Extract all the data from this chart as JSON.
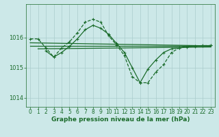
{
  "bg_color": "#cce8e8",
  "grid_color": "#aacccc",
  "line_color": "#1a6b2a",
  "xlabel": "Graphe pression niveau de la mer (hPa)",
  "xlabel_fontsize": 6.5,
  "tick_fontsize": 5.5,
  "xlim": [
    -0.5,
    23.5
  ],
  "ylim": [
    1013.7,
    1017.1
  ],
  "yticks": [
    1014,
    1015,
    1016
  ],
  "xticks": [
    0,
    1,
    2,
    3,
    4,
    5,
    6,
    7,
    8,
    9,
    10,
    11,
    12,
    13,
    14,
    15,
    16,
    17,
    18,
    19,
    20,
    21,
    22,
    23
  ],
  "series_main": {
    "x": [
      0,
      1,
      2,
      3,
      4,
      5,
      6,
      7,
      8,
      9,
      10,
      11,
      12,
      13,
      14,
      15,
      16,
      17,
      18,
      19,
      20,
      21,
      22,
      23
    ],
    "y": [
      1015.95,
      1015.95,
      1015.65,
      1015.35,
      1015.65,
      1015.85,
      1016.15,
      1016.5,
      1016.6,
      1016.5,
      1016.05,
      1015.75,
      1015.4,
      1014.7,
      1014.5,
      1014.5,
      1014.85,
      1015.1,
      1015.5,
      1015.65,
      1015.7,
      1015.72,
      1015.73,
      1015.73
    ]
  },
  "series_wave2": {
    "x": [
      2,
      3,
      4,
      5,
      6,
      7,
      8,
      9,
      10,
      11,
      12,
      13,
      14,
      15,
      16,
      17,
      18,
      19,
      20,
      21,
      22,
      23
    ],
    "y": [
      1015.55,
      1015.35,
      1015.5,
      1015.7,
      1015.95,
      1016.25,
      1016.4,
      1016.3,
      1016.1,
      1015.8,
      1015.5,
      1015.0,
      1014.5,
      1014.95,
      1015.25,
      1015.5,
      1015.62,
      1015.65,
      1015.68,
      1015.7,
      1015.72,
      1015.73
    ]
  },
  "series_flat1": {
    "x": [
      0,
      23
    ],
    "y": [
      1015.82,
      1015.72
    ]
  },
  "series_flat2": {
    "x": [
      0,
      23
    ],
    "y": [
      1015.72,
      1015.72
    ]
  },
  "series_flat3": {
    "x": [
      1,
      23
    ],
    "y": [
      1015.62,
      1015.68
    ]
  }
}
